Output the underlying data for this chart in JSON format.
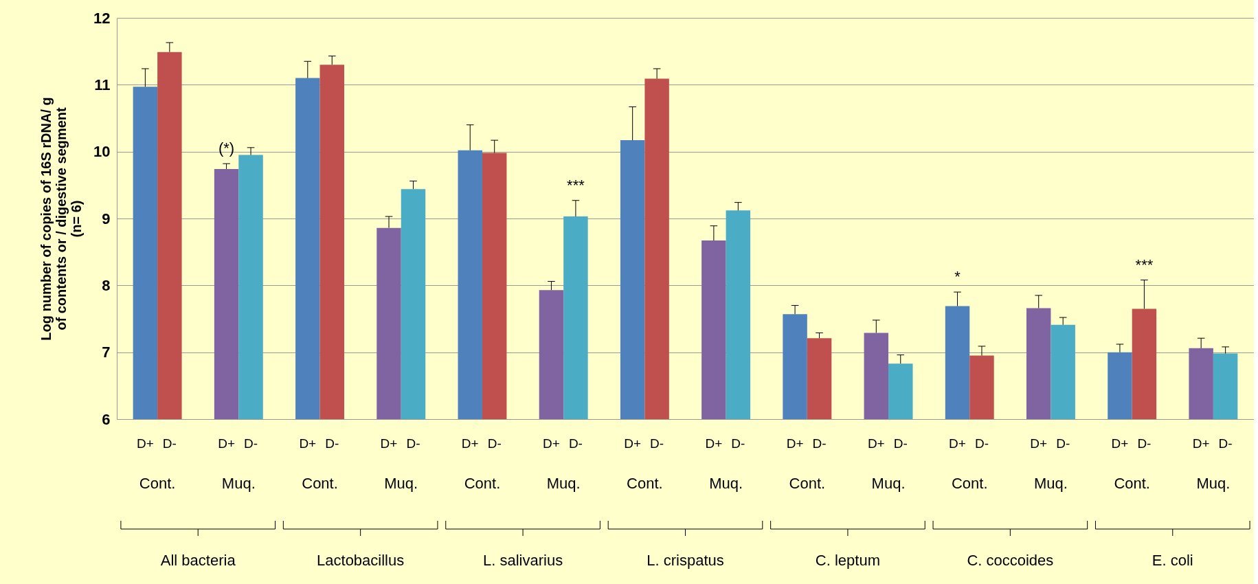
{
  "chart_data": {
    "type": "bar",
    "ylabel": "Log number of copies of 16S rDNA/ g\nof contents or / digestive segment\n(n= 6)",
    "categories": [
      "Cont.",
      "Muq.",
      "Cont.",
      "Muq.",
      "Cont.",
      "Muq.",
      "Cont.",
      "Muq.",
      "Cont.",
      "Muq.",
      "Cont.",
      "Muq.",
      "Cont.",
      "Muq."
    ],
    "series": [
      {
        "name": "D+",
        "colors": [
          "#4f81bd",
          "#8064a2",
          "#4f81bd",
          "#8064a2",
          "#4f81bd",
          "#8064a2",
          "#4f81bd",
          "#8064a2",
          "#4f81bd",
          "#8064a2",
          "#4f81bd",
          "#8064a2",
          "#4f81bd",
          "#8064a2"
        ],
        "values": [
          10.97,
          9.74,
          11.1,
          8.86,
          10.02,
          7.93,
          10.17,
          8.67,
          7.57,
          7.29,
          7.69,
          7.66,
          7.0,
          7.06
        ],
        "errors": [
          [
            10.97,
            11.24
          ],
          [
            9.74,
            9.82
          ],
          [
            11.1,
            11.35
          ],
          [
            8.86,
            9.03
          ],
          [
            10.02,
            10.4
          ],
          [
            7.93,
            8.06
          ],
          [
            10.17,
            10.67
          ],
          [
            8.67,
            8.89
          ],
          [
            7.57,
            7.7
          ],
          [
            7.29,
            7.48
          ],
          [
            7.69,
            7.9
          ],
          [
            7.66,
            7.85
          ],
          [
            7.0,
            7.12
          ],
          [
            7.06,
            7.21
          ]
        ],
        "value_labels": [
          null,
          "(*)",
          null,
          null,
          null,
          null,
          null,
          null,
          null,
          null,
          "*",
          null,
          null,
          null
        ]
      },
      {
        "name": "D-",
        "colors": [
          "#c0504d",
          "#4bacc6",
          "#c0504d",
          "#4bacc6",
          "#c0504d",
          "#4bacc6",
          "#c0504d",
          "#4bacc6",
          "#c0504d",
          "#4bacc6",
          "#c0504d",
          "#4bacc6",
          "#c0504d",
          "#4bacc6"
        ],
        "values": [
          11.49,
          9.95,
          11.3,
          9.44,
          9.98,
          9.03,
          11.09,
          9.12,
          7.21,
          6.83,
          6.95,
          7.41,
          7.65,
          6.98
        ],
        "errors": [
          [
            11.49,
            11.63
          ],
          [
            9.95,
            10.06
          ],
          [
            11.3,
            11.43
          ],
          [
            9.44,
            9.56
          ],
          [
            9.98,
            10.17
          ],
          [
            9.03,
            9.27
          ],
          [
            11.09,
            11.24
          ],
          [
            9.12,
            9.24
          ],
          [
            7.21,
            7.29
          ],
          [
            6.83,
            6.96
          ],
          [
            6.95,
            7.09
          ],
          [
            7.41,
            7.52
          ],
          [
            7.65,
            8.08
          ],
          [
            6.98,
            7.08
          ]
        ],
        "value_labels": [
          null,
          null,
          null,
          null,
          null,
          "***",
          null,
          null,
          null,
          null,
          null,
          null,
          "***",
          null
        ]
      }
    ],
    "annotations": [
      "All bacteria",
      "Lactobacillus",
      "L. salivarius",
      "L. crispatus",
      "C. leptum",
      "C. coccoides",
      "E. coli"
    ],
    "ylim": [
      6,
      12
    ],
    "yticks": [
      6,
      7,
      8,
      9,
      10,
      11,
      12
    ],
    "grid": "y"
  }
}
